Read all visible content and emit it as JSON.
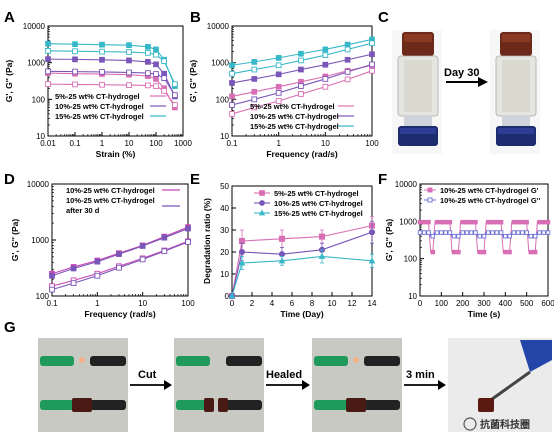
{
  "panel_labels": [
    "A",
    "B",
    "C",
    "D",
    "E",
    "F",
    "G"
  ],
  "photo_text": {
    "day30": "Day 30",
    "cut": "Cut",
    "healed": "Healed",
    "three_min": "3 min"
  },
  "watermark": "抗菌科技圈",
  "colors": {
    "pink": "#d86fb4",
    "purple": "#7a56b8",
    "cyan": "#37b8c8",
    "blue": "#6b6fd6",
    "magenta": "#c846b4"
  },
  "chart_data": [
    {
      "panel": "A",
      "type": "line",
      "xscale": "log",
      "yscale": "log",
      "xlabel": "Strain (%)",
      "ylabel": "G', G'' (Pa)",
      "xlim": [
        0.01,
        1000
      ],
      "ylim": [
        10,
        10000
      ],
      "xticks": [
        "0.01",
        "0.1",
        "1",
        "10",
        "100",
        "1000"
      ],
      "yticks": [
        "10",
        "100",
        "1000",
        "10000"
      ],
      "legend": [
        "5%-25 wt% CT-hydrogel",
        "10%-25 wt% CT-hydrogel",
        "15%-25 wt% CT-hydrogel"
      ],
      "series": [
        {
          "name": "5%-25 wt% CT-hydrogel",
          "kind": "G'",
          "color": "#d86fb4",
          "x": [
            0.01,
            0.1,
            1,
            10,
            50,
            100,
            200,
            500
          ],
          "y": [
            520,
            500,
            490,
            470,
            430,
            360,
            200,
            60
          ]
        },
        {
          "name": "5%-25 wt% CT-hydrogel",
          "kind": "G''",
          "color": "#d86fb4",
          "x": [
            0.01,
            0.1,
            1,
            10,
            50,
            100,
            200,
            500
          ],
          "y": [
            260,
            255,
            250,
            245,
            240,
            230,
            170,
            70
          ]
        },
        {
          "name": "10%-25 wt% CT-hydrogel",
          "kind": "G'",
          "color": "#7a56b8",
          "x": [
            0.01,
            0.1,
            1,
            10,
            50,
            100,
            200,
            500
          ],
          "y": [
            1250,
            1230,
            1200,
            1150,
            1050,
            900,
            500,
            120
          ]
        },
        {
          "name": "10%-25 wt% CT-hydrogel",
          "kind": "G''",
          "color": "#7a56b8",
          "x": [
            0.01,
            0.1,
            1,
            10,
            50,
            100,
            200,
            500
          ],
          "y": [
            580,
            570,
            560,
            540,
            520,
            490,
            380,
            130
          ]
        },
        {
          "name": "15%-25 wt% CT-hydrogel",
          "kind": "G'",
          "color": "#37b8c8",
          "x": [
            0.01,
            0.1,
            1,
            10,
            50,
            100,
            200,
            500
          ],
          "y": [
            3300,
            3200,
            3100,
            3000,
            2700,
            2300,
            1200,
            230
          ]
        },
        {
          "name": "15%-25 wt% CT-hydrogel",
          "kind": "G''",
          "color": "#37b8c8",
          "x": [
            0.01,
            0.1,
            1,
            10,
            50,
            100,
            200,
            500
          ],
          "y": [
            2100,
            2050,
            2000,
            1950,
            1850,
            1650,
            1100,
            260
          ]
        }
      ]
    },
    {
      "panel": "B",
      "type": "line",
      "xscale": "log",
      "yscale": "log",
      "xlabel": "Frequency (rad/s)",
      "ylabel": "G', G'' (Pa)",
      "xlim": [
        0.1,
        100
      ],
      "ylim": [
        10,
        10000
      ],
      "xticks": [
        "0.1",
        "1",
        "10",
        "100"
      ],
      "yticks": [
        "10",
        "100",
        "1000",
        "10000"
      ],
      "legend": [
        "5%-25 wt% CT-hydrogel",
        "10%-25 wt% CT-hydrogel",
        "15%-25 wt% CT-hydrogel"
      ],
      "series": [
        {
          "name": "5%-25 wt% CT-hydrogel",
          "kind": "G'",
          "color": "#d86fb4",
          "x": [
            0.1,
            0.3,
            1,
            3,
            10,
            30,
            100
          ],
          "y": [
            120,
            160,
            220,
            300,
            420,
            600,
            850
          ]
        },
        {
          "name": "5%-25 wt% CT-hydrogel",
          "kind": "G''",
          "color": "#d86fb4",
          "x": [
            0.1,
            0.3,
            1,
            3,
            10,
            30,
            100
          ],
          "y": [
            40,
            60,
            90,
            140,
            220,
            350,
            600
          ]
        },
        {
          "name": "10%-25 wt% CT-hydrogel",
          "kind": "G'",
          "color": "#7a56b8",
          "x": [
            0.1,
            0.3,
            1,
            3,
            10,
            30,
            100
          ],
          "y": [
            280,
            360,
            480,
            650,
            880,
            1200,
            1700
          ]
        },
        {
          "name": "10%-25 wt% CT-hydrogel",
          "kind": "G''",
          "color": "#7a56b8",
          "x": [
            0.1,
            0.3,
            1,
            3,
            10,
            30,
            100
          ],
          "y": [
            70,
            100,
            150,
            230,
            360,
            560,
            900
          ]
        },
        {
          "name": "15%-25 wt% CT-hydrogel",
          "kind": "G'",
          "color": "#37b8c8",
          "x": [
            0.1,
            0.3,
            1,
            3,
            10,
            30,
            100
          ],
          "y": [
            850,
            1050,
            1350,
            1750,
            2300,
            3100,
            4300
          ]
        },
        {
          "name": "15%-25 wt% CT-hydrogel",
          "kind": "G''",
          "color": "#37b8c8",
          "x": [
            0.1,
            0.3,
            1,
            3,
            10,
            30,
            100
          ],
          "y": [
            500,
            650,
            850,
            1150,
            1600,
            2300,
            3400
          ]
        }
      ]
    },
    {
      "panel": "D",
      "type": "line",
      "xscale": "log",
      "yscale": "log",
      "xlabel": "Frequency (rad/s)",
      "ylabel": "G', G'' (Pa)",
      "xlim": [
        0.1,
        100
      ],
      "ylim": [
        100,
        10000
      ],
      "xticks": [
        "0.1",
        "1",
        "10",
        "100"
      ],
      "yticks": [
        "100",
        "1000",
        "10000"
      ],
      "legend": [
        "10%-25 wt% CT-hydrogel",
        "10%-25 wt% CT-hydrogel after 30 d"
      ],
      "series": [
        {
          "name": "10%-25 wt% CT-hydrogel",
          "kind": "G'",
          "color": "#c846b4",
          "x": [
            0.1,
            0.3,
            1,
            3,
            10,
            30,
            100
          ],
          "y": [
            250,
            330,
            430,
            580,
            800,
            1150,
            1700
          ]
        },
        {
          "name": "10%-25 wt% CT-hydrogel",
          "kind": "G''",
          "color": "#c846b4",
          "x": [
            0.1,
            0.3,
            1,
            3,
            10,
            30,
            100
          ],
          "y": [
            150,
            190,
            250,
            340,
            470,
            650,
            950
          ]
        },
        {
          "name": "10%-25 wt% CT-hydrogel after 30 d",
          "kind": "G'",
          "color": "#7a56b8",
          "x": [
            0.1,
            0.3,
            1,
            3,
            10,
            30,
            100
          ],
          "y": [
            230,
            310,
            410,
            560,
            780,
            1100,
            1600
          ]
        },
        {
          "name": "10%-25 wt% CT-hydrogel after 30 d",
          "kind": "G''",
          "color": "#7a56b8",
          "x": [
            0.1,
            0.3,
            1,
            3,
            10,
            30,
            100
          ],
          "y": [
            130,
            170,
            230,
            320,
            450,
            630,
            920
          ]
        }
      ]
    },
    {
      "panel": "E",
      "type": "line",
      "xlabel": "Time (Day)",
      "ylabel": "Degradation ratio (%)",
      "xlim": [
        0,
        14
      ],
      "ylim": [
        0,
        50
      ],
      "xticks": [
        "0",
        "2",
        "4",
        "6",
        "8",
        "10",
        "12",
        "14"
      ],
      "yticks": [
        "0",
        "10",
        "20",
        "30",
        "40",
        "50"
      ],
      "legend": [
        "5%-25 wt% CT-hydrogel",
        "10%-25 wt% CT-hydrogel",
        "15%-25 wt% CT-hydrogel"
      ],
      "x": [
        0,
        1,
        5,
        9,
        14
      ],
      "series": [
        {
          "name": "5%-25 wt% CT-hydrogel",
          "color": "#d86fb4",
          "values": [
            0,
            25,
            26,
            27,
            32
          ],
          "err": [
            0,
            5,
            4,
            3,
            4
          ]
        },
        {
          "name": "10%-25 wt% CT-hydrogel",
          "color": "#7a56b8",
          "values": [
            0,
            20,
            19,
            21,
            29
          ],
          "err": [
            0,
            4,
            3,
            3,
            5
          ]
        },
        {
          "name": "15%-25 wt% CT-hydrogel",
          "color": "#37b8c8",
          "values": [
            0,
            15,
            16,
            18,
            16
          ],
          "err": [
            0,
            3,
            2,
            3,
            3
          ]
        }
      ]
    },
    {
      "panel": "F",
      "type": "line",
      "yscale": "log",
      "xlabel": "Time (s)",
      "ylabel": "G', G'' (Pa)",
      "xlim": [
        0,
        600
      ],
      "ylim": [
        10,
        10000
      ],
      "xticks": [
        "0",
        "100",
        "200",
        "300",
        "400",
        "500",
        "600"
      ],
      "yticks": [
        "10",
        "100",
        "1000",
        "10000"
      ],
      "legend": [
        "10%-25 wt% CT-hydrogel G'",
        "10%-25 wt% CT-hydrogel G''"
      ],
      "series": [
        {
          "name": "10%-25 wt% CT-hydrogel G'",
          "color": "#d86fb4",
          "high": 950,
          "low": 150
        },
        {
          "name": "10%-25 wt% CT-hydrogel G''",
          "color": "#6b6fd6",
          "high": 500,
          "low": 400
        }
      ],
      "cycles": [
        [
          0,
          50
        ],
        [
          120,
          170
        ],
        [
          240,
          290
        ],
        [
          360,
          410
        ],
        [
          480,
          530
        ]
      ]
    }
  ]
}
